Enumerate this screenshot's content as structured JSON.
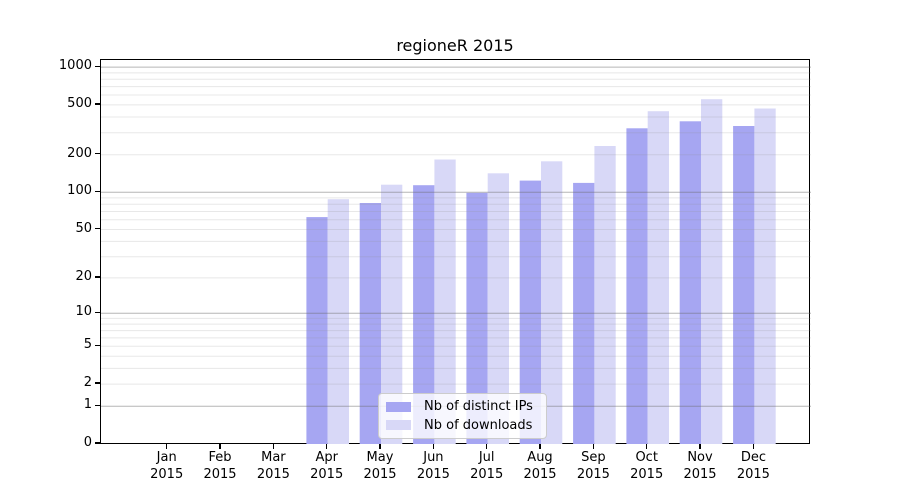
{
  "chart_data": {
    "type": "bar",
    "title": "regioneR 2015",
    "x_tick_labels": [
      {
        "month": "Jan",
        "year": "2015"
      },
      {
        "month": "Feb",
        "year": "2015"
      },
      {
        "month": "Mar",
        "year": "2015"
      },
      {
        "month": "Apr",
        "year": "2015"
      },
      {
        "month": "May",
        "year": "2015"
      },
      {
        "month": "Jun",
        "year": "2015"
      },
      {
        "month": "Jul",
        "year": "2015"
      },
      {
        "month": "Aug",
        "year": "2015"
      },
      {
        "month": "Sep",
        "year": "2015"
      },
      {
        "month": "Oct",
        "year": "2015"
      },
      {
        "month": "Nov",
        "year": "2015"
      },
      {
        "month": "Dec",
        "year": "2015"
      }
    ],
    "series": [
      {
        "name": "Nb of distinct IPs",
        "color": "#a6a6f2",
        "values": [
          0,
          0,
          0,
          63,
          82,
          114,
          99,
          124,
          119,
          325,
          370,
          339
        ]
      },
      {
        "name": "Nb of downloads",
        "color": "#d8d8f7",
        "values": [
          0,
          0,
          0,
          88,
          115,
          183,
          142,
          177,
          235,
          445,
          555,
          468
        ]
      }
    ],
    "y_axis": {
      "scale": "log10(1+y)",
      "tick_values": [
        0,
        1,
        2,
        5,
        10,
        20,
        50,
        100,
        200,
        500,
        1000
      ],
      "major_grid_values": [
        1,
        10,
        100,
        1000
      ],
      "minor_grid_values": [
        2,
        3,
        4,
        5,
        6,
        7,
        8,
        9,
        20,
        30,
        40,
        50,
        60,
        70,
        80,
        90,
        200,
        300,
        400,
        500,
        600,
        700,
        800,
        900
      ],
      "top_value": 1140
    },
    "legend": {
      "position": "lower-center",
      "items": [
        "Nb of distinct IPs",
        "Nb of downloads"
      ]
    },
    "colors": {
      "bar_distinct_ips": "#a6a6f2",
      "bar_downloads": "#d8d8f7",
      "major_grid": "rgba(110,110,110,0.50)",
      "minor_grid": "rgba(150,150,150,0.22)",
      "spine": "#000000",
      "text": "#000000",
      "background": "#ffffff"
    }
  }
}
